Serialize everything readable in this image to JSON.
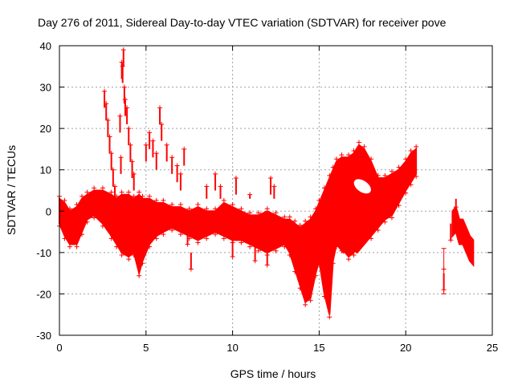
{
  "chart_data": {
    "type": "scatter",
    "title": "Day 276 of 2011, Sidereal Day-to-day VTEC variation (SDTVAR) for receiver pove",
    "xlabel": "GPS time / hours",
    "ylabel": "SDTVAR / TECUs",
    "xlim": [
      0,
      25
    ],
    "ylim": [
      -30,
      40
    ],
    "grid": true,
    "marker": "+",
    "color": "#ff0000",
    "x_ticks": [
      0,
      5,
      10,
      15,
      20,
      25
    ],
    "x_tick_labels": [
      "0",
      "5",
      "10",
      "15",
      "20",
      "25"
    ],
    "y_ticks": [
      -30,
      -20,
      -10,
      0,
      10,
      20,
      30,
      40
    ],
    "y_tick_labels": [
      "-30",
      "-20",
      "-10",
      "0",
      "10",
      "20",
      "30",
      "40"
    ],
    "band": {
      "x": [
        0.0,
        0.3,
        0.6,
        1.0,
        1.3,
        1.6,
        2.0,
        2.5,
        3.0,
        3.3,
        3.6,
        4.0,
        4.3,
        4.6,
        4.8,
        5.2,
        5.6,
        6.0,
        6.5,
        7.0,
        7.5,
        8.0,
        8.5,
        9.0,
        9.5,
        10.0,
        10.5,
        11.0,
        11.5,
        12.0,
        12.5,
        13.0,
        13.3,
        13.6,
        13.9,
        14.2,
        14.5,
        14.8,
        15.0,
        15.3,
        15.6,
        15.8,
        16.0,
        16.3,
        16.7,
        17.0,
        17.3,
        17.6,
        18.0,
        18.4,
        18.8,
        19.2,
        19.6,
        20.0,
        20.3,
        20.6
      ],
      "lo": [
        -3,
        -6,
        -8,
        -8,
        -5,
        -2,
        -1,
        -3,
        -6,
        -8,
        -10,
        -11,
        -10,
        -15,
        -12,
        -8,
        -6,
        -5,
        -4,
        -5,
        -6,
        -7,
        -6,
        -5,
        -6,
        -7,
        -7,
        -8,
        -9,
        -10,
        -9,
        -8,
        -10,
        -14,
        -18,
        -22,
        -21,
        -15,
        -12,
        -20,
        -25,
        -12,
        -8,
        -9,
        -11,
        -10,
        -8,
        -7,
        -6,
        -4,
        -2,
        -1,
        2,
        5,
        7,
        9
      ],
      "hi": [
        3,
        2,
        0,
        1,
        3,
        4,
        5,
        5,
        4,
        3,
        4,
        4,
        3,
        4,
        3,
        3,
        2,
        2,
        1,
        1,
        0,
        1,
        0,
        0,
        2,
        1,
        0,
        -1,
        -1,
        0,
        -1,
        -2,
        -2,
        -3,
        -4,
        -3,
        -2,
        0,
        2,
        5,
        8,
        10,
        12,
        13,
        13,
        14,
        16,
        15,
        12,
        8,
        8,
        9,
        10,
        12,
        14,
        15
      ]
    },
    "gap_band": {
      "x": [
        15.7,
        16.0,
        16.4,
        16.8,
        17.2,
        17.6,
        18.0
      ],
      "lo": [
        -6,
        -8,
        -10,
        -9,
        -10,
        -8,
        -6
      ],
      "hi": [
        -1,
        -2,
        -2,
        0,
        -1,
        -3,
        -2
      ]
    },
    "spikes": [
      {
        "x": 2.6,
        "y": 29
      },
      {
        "x": 2.7,
        "y": 26
      },
      {
        "x": 2.8,
        "y": 22
      },
      {
        "x": 2.9,
        "y": 18
      },
      {
        "x": 3.0,
        "y": 14
      },
      {
        "x": 3.1,
        "y": 10
      },
      {
        "x": 3.2,
        "y": 6
      },
      {
        "x": 3.5,
        "y": 23
      },
      {
        "x": 3.6,
        "y": 36
      },
      {
        "x": 3.65,
        "y": 35
      },
      {
        "x": 3.7,
        "y": 39
      },
      {
        "x": 3.75,
        "y": 30
      },
      {
        "x": 3.8,
        "y": 27
      },
      {
        "x": 3.9,
        "y": 25
      },
      {
        "x": 4.0,
        "y": 20
      },
      {
        "x": 4.1,
        "y": 16
      },
      {
        "x": 4.2,
        "y": 12
      },
      {
        "x": 4.3,
        "y": 9
      },
      {
        "x": 3.55,
        "y": 13
      },
      {
        "x": 5.0,
        "y": 16
      },
      {
        "x": 5.2,
        "y": 19
      },
      {
        "x": 5.4,
        "y": 17
      },
      {
        "x": 5.6,
        "y": 14
      },
      {
        "x": 5.8,
        "y": 25
      },
      {
        "x": 5.9,
        "y": 21
      },
      {
        "x": 6.2,
        "y": 16
      },
      {
        "x": 6.5,
        "y": 13
      },
      {
        "x": 6.8,
        "y": 11
      },
      {
        "x": 7.0,
        "y": 9
      },
      {
        "x": 7.2,
        "y": 15
      },
      {
        "x": 7.6,
        "y": -14
      },
      {
        "x": 7.4,
        "y": -8
      },
      {
        "x": 8.5,
        "y": 6
      },
      {
        "x": 9.0,
        "y": 9
      },
      {
        "x": 9.3,
        "y": 6
      },
      {
        "x": 10.2,
        "y": 8
      },
      {
        "x": 11.0,
        "y": 4
      },
      {
        "x": 12.2,
        "y": 8
      },
      {
        "x": 12.4,
        "y": 6
      },
      {
        "x": 10.0,
        "y": -11
      },
      {
        "x": 11.3,
        "y": -12
      },
      {
        "x": 12.0,
        "y": -13
      },
      {
        "x": 22.9,
        "y": 1
      },
      {
        "x": 22.6,
        "y": -7
      },
      {
        "x": 22.2,
        "y": -19
      }
    ],
    "tail_band": {
      "x": [
        22.7,
        22.9,
        23.1,
        23.3,
        23.5,
        23.7,
        23.9
      ],
      "lo": [
        -6,
        -5,
        -8,
        -8,
        -10,
        -12,
        -13
      ],
      "hi": [
        0,
        1,
        -2,
        -2,
        -4,
        -6,
        -7
      ]
    },
    "error_bar": {
      "x": 22.2,
      "lo": -20,
      "hi": -9,
      "y": -14
    }
  }
}
